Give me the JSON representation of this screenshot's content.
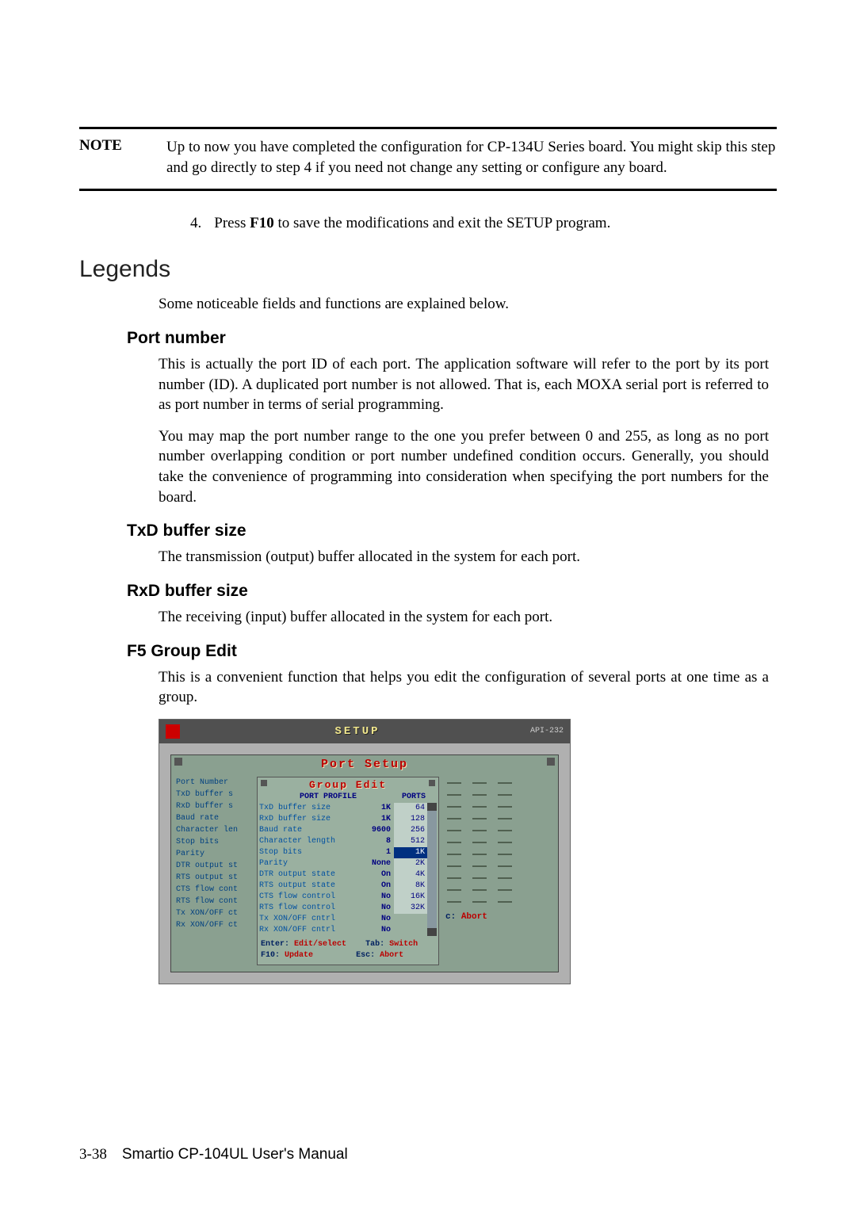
{
  "note": {
    "label": "NOTE",
    "text": "Up to now you have completed the configuration for CP-134U Series board. You might skip this step and go directly to step 4 if you need not change any setting or configure any board."
  },
  "step4": {
    "num": "4.",
    "pre": "Press ",
    "key": "F10",
    "post": " to save the modifications and exit the SETUP program."
  },
  "legends": {
    "title": "Legends",
    "intro": "Some noticeable fields and functions are explained below."
  },
  "portNumber": {
    "title": "Port number",
    "p1": "This is actually the port ID of each port. The application software will refer to the port by its port number (ID). A duplicated port number is not allowed. That is, each MOXA serial port is referred to as port number in terms of serial programming.",
    "p2": "You may map the port number range to the one you prefer between 0 and 255, as long as no port number overlapping condition or port number undefined condition occurs. Generally, you should take the convenience of programming into consideration when specifying the port numbers for the board."
  },
  "txd": {
    "title": "TxD buffer size",
    "p1": "The transmission (output) buffer allocated in the system for each port."
  },
  "rxd": {
    "title": "RxD buffer size",
    "p1": "The receiving (input) buffer allocated in the system for each port."
  },
  "f5": {
    "title": "F5 Group Edit",
    "p1": "This is a convenient function that helps you edit the configuration of several ports at one time as a group."
  },
  "screenshot": {
    "title": "SETUP",
    "titleRight": "API-232",
    "panelTitle": "Port Setup",
    "sidebarItems": [
      "Port Number",
      "TxD buffer s",
      "RxD buffer s",
      "Baud rate",
      "Character len",
      "Stop bits",
      "Parity",
      "DTR output st",
      "RTS output st",
      "CTS flow cont",
      "RTS flow cont",
      "Tx XON/OFF ct",
      "Rx XON/OFF ct"
    ],
    "groupEdit": {
      "title": "Group Edit",
      "headerProfile": "PORT PROFILE",
      "headerPorts": "PORTS",
      "rows": [
        {
          "label": "TxD buffer size",
          "val": "1K"
        },
        {
          "label": "RxD buffer size",
          "val": "1K"
        },
        {
          "label": "Baud rate",
          "val": "9600"
        },
        {
          "label": "Character length",
          "val": "8"
        },
        {
          "label": "Stop bits",
          "val": "1"
        },
        {
          "label": "Parity",
          "val": "None"
        },
        {
          "label": "DTR output state",
          "val": "On"
        },
        {
          "label": "RTS output state",
          "val": "On"
        },
        {
          "label": "CTS flow control",
          "val": "No"
        },
        {
          "label": "RTS flow control",
          "val": "No"
        },
        {
          "label": "Tx XON/OFF cntrl",
          "val": "No"
        },
        {
          "label": "Rx XON/OFF cntrl",
          "val": "No"
        }
      ],
      "ports": [
        "64",
        "128",
        "256",
        "512",
        "1K",
        "2K",
        "4K",
        "8K",
        "16K",
        "32K"
      ],
      "footer1a": "Enter:",
      "footer1b": "Edit/select",
      "footer2a": "Tab:",
      "footer2b": "Switch",
      "footer3a": "F10:",
      "footer3b": "Update",
      "footer4a": "Esc:",
      "footer4b": "Abort"
    },
    "abortKey": "c:",
    "abortText": "Abort"
  },
  "footer": {
    "page": "3-38",
    "manual": "Smartio CP-104UL User's Manual"
  }
}
